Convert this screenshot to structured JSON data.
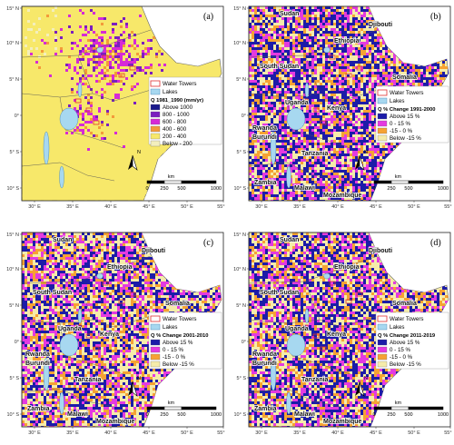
{
  "colors": {
    "land_default": "#f5ef9a",
    "lake": "#a7d8f0",
    "tower_outline": "#e03030",
    "abs_classes": [
      "#1a1a8c",
      "#7b1fbf",
      "#d62ad6",
      "#f39a3a",
      "#f7e86a",
      "#f3efbd"
    ],
    "chg_classes": [
      "#1c1ca8",
      "#e43ae0",
      "#f6a233",
      "#f5ecaa"
    ]
  },
  "axes": {
    "lon_ticks": [
      "30° E",
      "35° E",
      "40° E",
      "45° E",
      "50° E",
      "55° E"
    ],
    "lat_ticks": [
      "15° N",
      "10° N",
      "5° N",
      "0°",
      "5° S",
      "10° S"
    ]
  },
  "scalebar": {
    "unit": "km",
    "ticks": [
      "0",
      "250",
      "500",
      "1000"
    ]
  },
  "north": "N",
  "legend_common": {
    "towers": "Water Towers",
    "lakes": "Lakes"
  },
  "panels": [
    {
      "label": "(a)",
      "legend_title": "Q 1981_1990 (mm/yr)",
      "classes": [
        "Above 1000",
        "800 - 1000",
        "600 - 800",
        "400 - 600",
        "200 - 400",
        "Below - 200"
      ],
      "places": []
    },
    {
      "label": "(b)",
      "legend_title": "Q % Change 1991-2000",
      "classes": [
        "Above 15 %",
        "0 - 15 %",
        "-15 - 0 %",
        "Below -15 %"
      ],
      "places": [
        "Sudan",
        "Djibouti",
        "Ethiopia",
        "South Sudan",
        "Somalia",
        "Uganda",
        "Kenya",
        "Rwanda",
        "Burundi",
        "Tanzania",
        "Zambia",
        "Malawi",
        "Mozambique"
      ]
    },
    {
      "label": "(c)",
      "legend_title": "Q % Change 2001-2010",
      "classes": [
        "Above 15 %",
        "0 - 15 %",
        "-15 - 0 %",
        "Below -15 %"
      ],
      "places": [
        "Sudan",
        "Djibouti",
        "Ethiopia",
        "South Sudan",
        "Somalia",
        "Uganda",
        "Kenya",
        "Rwanda",
        "Burundi",
        "Tanzania",
        "Zambia",
        "Malawi",
        "Mozambique"
      ]
    },
    {
      "label": "(d)",
      "legend_title": "Q % Change 2011-2019",
      "classes": [
        "Above 15 %",
        "0 - 15 %",
        "-15 - 0 %",
        "Below -15 %"
      ],
      "places": [
        "Sudan",
        "Djibouti",
        "Ethiopia",
        "South Sudan",
        "Somalia",
        "Uganda",
        "Kenya",
        "Rwanda",
        "Burundi",
        "Tanzania",
        "Zambia",
        "Malawi",
        "Mozambique"
      ]
    }
  ]
}
